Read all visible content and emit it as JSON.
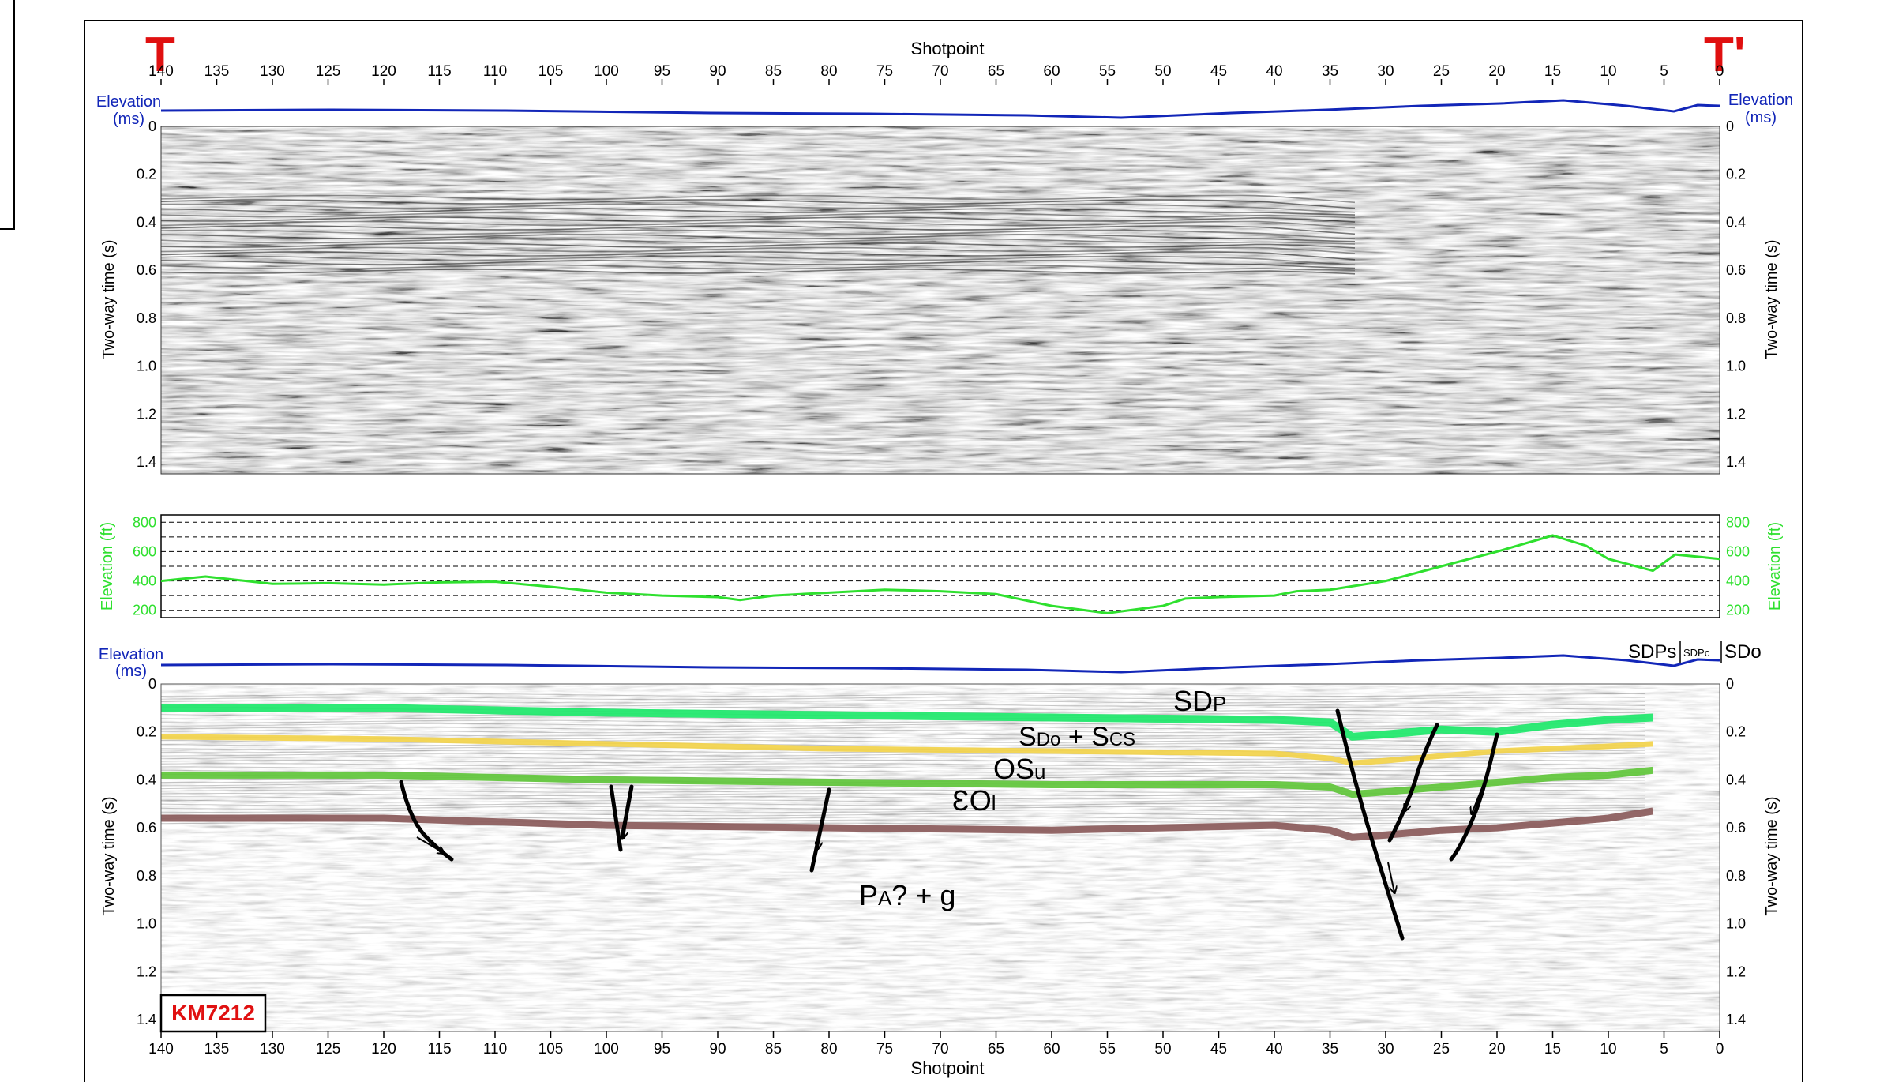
{
  "colors": {
    "endpoint_red": "#e01010",
    "elevation_blue": "#1226b8",
    "elevation_green": "#2ee02e",
    "horizon_sdp": "#1de86a",
    "horizon_sdo_scs": "#f2d24a",
    "horizon_osu": "#5fc63a",
    "horizon_col": "#8a5a5a",
    "label_red": "#e01010",
    "fault": "#000000"
  },
  "endpoints": {
    "left": "T",
    "right": "T'"
  },
  "shotpoint": {
    "top_title": "Shotpoint",
    "bottom_title": "Shotpoint",
    "ticks": [
      "140",
      "135",
      "130",
      "125",
      "120",
      "115",
      "110",
      "105",
      "100",
      "95",
      "90",
      "85",
      "80",
      "75",
      "70",
      "65",
      "60",
      "55",
      "50",
      "45",
      "40",
      "35",
      "30",
      "25",
      "20",
      "15",
      "10",
      "5",
      "0"
    ]
  },
  "upper_panel": {
    "elevation_label_left": [
      "Elevation",
      "(ms)"
    ],
    "elevation_label_right": [
      "Elevation",
      "(ms)"
    ],
    "twt_label": "Two-way time (s)",
    "twt_ticks": [
      "0",
      "0.2",
      "0.4",
      "0.6",
      "0.8",
      "1.0",
      "1.2",
      "1.4"
    ],
    "elevation_zero": "0"
  },
  "middle_panel": {
    "elevation_label": "Elevation (ft)",
    "ticks": [
      "800",
      "600",
      "400",
      "200"
    ]
  },
  "lower_panel": {
    "elevation_label_left": [
      "Elevation",
      "(ms)"
    ],
    "twt_label": "Two-way time (s)",
    "twt_ticks": [
      "0",
      "0.2",
      "0.4",
      "0.6",
      "0.8",
      "1.0",
      "1.2",
      "1.4"
    ],
    "formation_header": {
      "left": "SDPs",
      "middle": "SDPc",
      "right": "SDo"
    },
    "units": {
      "sdp": {
        "main": "SD",
        "sub": "P"
      },
      "sdo_scs": {
        "a": "S",
        "a_sub": "Do",
        "plus": " + S",
        "b_sub": "CS"
      },
      "osu": {
        "main": "OS",
        "sub": "u"
      },
      "col": {
        "main": "ƐO",
        "sub": "l"
      },
      "pa_g": {
        "main": "P",
        "sub": "A",
        "rest": "? + g"
      }
    },
    "line_id": "KM7212"
  },
  "chart_data": {
    "type": "seismic-profile",
    "x_axis": {
      "title": "Shotpoint",
      "range": [
        140,
        0
      ],
      "reversed": true
    },
    "y_axis": {
      "title": "Two-way time (s)",
      "range": [
        0,
        1.4
      ]
    },
    "elevation_ft": {
      "title": "Elevation (ft)",
      "range": [
        200,
        800
      ],
      "shotpoint": [
        140,
        136,
        130,
        125,
        120,
        115,
        110,
        105,
        100,
        95,
        90,
        88,
        85,
        80,
        75,
        70,
        65,
        60,
        55,
        50,
        48,
        45,
        40,
        38,
        35,
        30,
        25,
        20,
        15,
        12,
        10,
        6,
        4,
        0
      ],
      "elevation": [
        400,
        430,
        380,
        385,
        375,
        390,
        395,
        360,
        320,
        300,
        290,
        270,
        300,
        320,
        340,
        330,
        310,
        230,
        180,
        230,
        280,
        290,
        300,
        330,
        340,
        400,
        500,
        600,
        710,
        640,
        550,
        470,
        580,
        550
      ]
    },
    "horizons": [
      {
        "name": "SDP",
        "shotpoint": [
          140,
          120,
          100,
          80,
          60,
          40,
          35,
          33,
          30,
          25,
          20,
          15,
          10,
          6
        ],
        "twt": [
          0.1,
          0.1,
          0.12,
          0.13,
          0.14,
          0.15,
          0.16,
          0.22,
          0.21,
          0.19,
          0.2,
          0.17,
          0.15,
          0.14
        ]
      },
      {
        "name": "SDo + SCS",
        "shotpoint": [
          140,
          120,
          100,
          80,
          60,
          40,
          35,
          33,
          30,
          25,
          20,
          15,
          10,
          6
        ],
        "twt": [
          0.22,
          0.23,
          0.25,
          0.27,
          0.28,
          0.29,
          0.31,
          0.33,
          0.32,
          0.3,
          0.28,
          0.27,
          0.26,
          0.25
        ]
      },
      {
        "name": "OSu",
        "shotpoint": [
          140,
          120,
          100,
          80,
          60,
          40,
          35,
          33,
          30,
          25,
          20,
          15,
          10,
          6
        ],
        "twt": [
          0.38,
          0.38,
          0.4,
          0.41,
          0.42,
          0.42,
          0.43,
          0.46,
          0.45,
          0.43,
          0.41,
          0.39,
          0.38,
          0.36
        ]
      },
      {
        "name": "COl",
        "shotpoint": [
          140,
          120,
          100,
          80,
          60,
          40,
          35,
          33,
          30,
          25,
          20,
          15,
          10,
          6
        ],
        "twt": [
          0.56,
          0.56,
          0.59,
          0.6,
          0.61,
          0.59,
          0.61,
          0.64,
          0.63,
          0.61,
          0.6,
          0.58,
          0.56,
          0.53
        ]
      }
    ]
  }
}
